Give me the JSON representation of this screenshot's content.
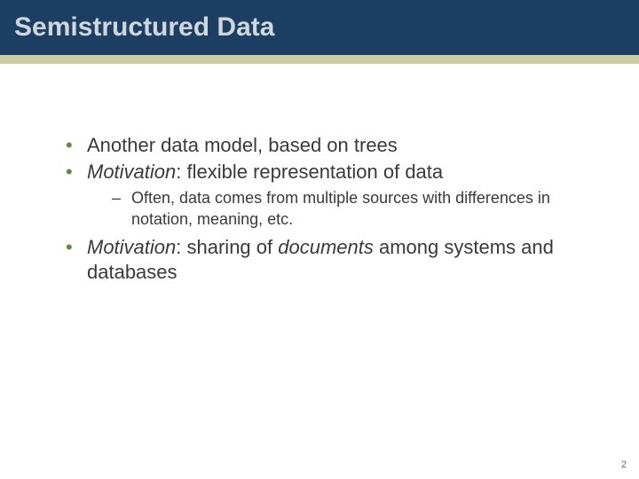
{
  "title": "Semistructured Data",
  "colors": {
    "title_bar_bg": "#1d3f63",
    "title_text": "#d0d7dc",
    "accent_strip": "#c9cda5",
    "bullet_color": "#5f8a3f",
    "body_text": "#3a3a3a",
    "page_num": "#6a6a6a",
    "background": "#ffffff"
  },
  "typography": {
    "title_fontsize": 30,
    "title_weight": "bold",
    "body_fontsize": 22,
    "sub_fontsize": 18,
    "font_family": "Verdana"
  },
  "bullets": [
    {
      "text": "Another data model, based on trees"
    },
    {
      "prefix": "Motivation",
      "text": ": flexible representation of data",
      "sub": [
        "Often, data comes from multiple sources with differences in notation, meaning, etc."
      ]
    },
    {
      "prefix": "Motivation",
      "mid1": ": sharing of ",
      "em": "documents",
      "mid2": " among systems and databases"
    }
  ],
  "page_number": "2"
}
